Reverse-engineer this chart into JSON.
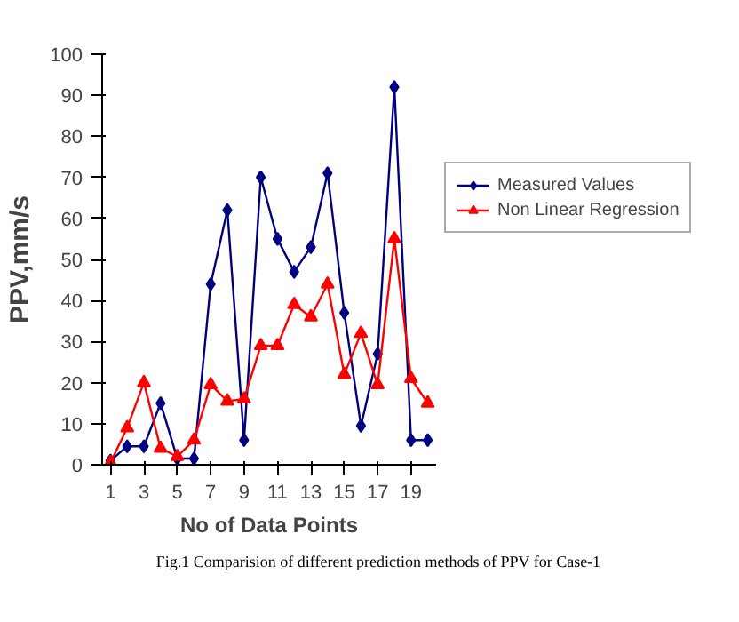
{
  "chart_data": {
    "type": "line",
    "xlabel": "No of Data Points",
    "ylabel": "PPV,mm/s",
    "x": [
      1,
      2,
      3,
      4,
      5,
      6,
      7,
      8,
      9,
      10,
      11,
      12,
      13,
      14,
      15,
      16,
      17,
      18,
      19,
      20
    ],
    "xlim": [
      0.5,
      20.5
    ],
    "xticks": [
      1,
      3,
      5,
      7,
      9,
      11,
      13,
      15,
      17,
      19
    ],
    "ylim": [
      0,
      100
    ],
    "yticks": [
      0,
      10,
      20,
      30,
      40,
      50,
      60,
      70,
      80,
      90,
      100
    ],
    "series": [
      {
        "name": "Measured Values",
        "color": "#000080",
        "marker": "diamond",
        "values": [
          1,
          4.5,
          4.5,
          15,
          1.5,
          1.5,
          44,
          62,
          6,
          70,
          55,
          47,
          53,
          71,
          37,
          9.5,
          27,
          92,
          6,
          6
        ]
      },
      {
        "name": "Non Linear Regression",
        "color": "#ff0000",
        "marker": "triangle",
        "values": [
          0.5,
          9,
          20,
          4,
          2,
          6,
          19.5,
          15.5,
          16,
          29,
          29,
          39,
          36,
          44,
          22,
          32,
          19.5,
          55,
          21,
          15
        ]
      }
    ],
    "legend": "right",
    "grid": false,
    "line_style": "solid",
    "annotations": [
      "Fig.1 Comparision of different prediction methods of PPV for Case-1"
    ]
  }
}
